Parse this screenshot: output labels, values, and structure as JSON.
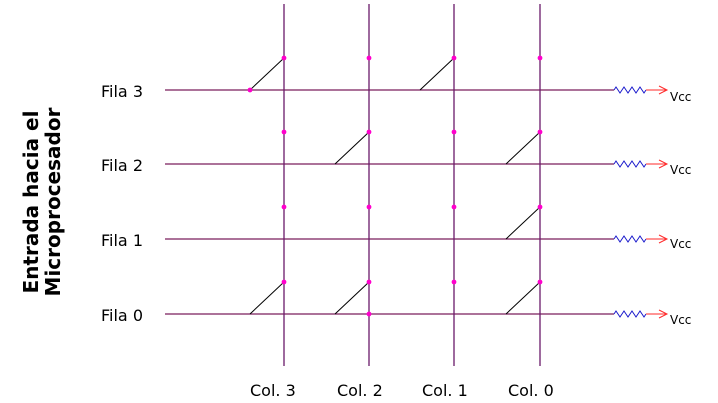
{
  "side_title": {
    "line1": "Entrada hacia el",
    "line2": "Microprocesador"
  },
  "rows": [
    {
      "label": "Fila 3",
      "vcc": "Vcc"
    },
    {
      "label": "Fila 2",
      "vcc": "Vcc"
    },
    {
      "label": "Fila 1",
      "vcc": "Vcc"
    },
    {
      "label": "Fila 0",
      "vcc": "Vcc"
    }
  ],
  "columns": [
    {
      "label": "Col. 3"
    },
    {
      "label": "Col. 2"
    },
    {
      "label": "Col. 1"
    },
    {
      "label": "Col. 0"
    }
  ],
  "switches": {
    "Fila 3": [
      "Col. 3",
      "Col. 1"
    ],
    "Fila 2": [
      "Col. 2",
      "Col. 0"
    ],
    "Fila 1": [
      "Col. 0"
    ],
    "Fila 0": [
      "Col. 3",
      "Col. 2",
      "Col. 0"
    ]
  },
  "colors": {
    "row_line": "#7a1f5c",
    "col_line": "#6a1a6a",
    "node": "#ff00cc",
    "resistor": "#1a1acc",
    "arrow": "#ff2a2a",
    "switch": "#000000"
  }
}
